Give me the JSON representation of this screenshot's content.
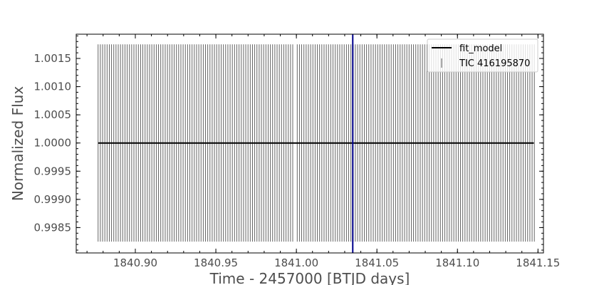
{
  "chart_data": {
    "type": "scatter",
    "title": "",
    "xlabel": "Time - 2457000 [BTJD days]",
    "ylabel": "Normalized Flux",
    "xlim": [
      1840.8633,
      1841.1534
    ],
    "ylim": [
      0.99805,
      1.00193
    ],
    "xticks": [
      1840.9,
      1840.95,
      1841.0,
      1841.05,
      1841.1,
      1841.15
    ],
    "xtick_labels": [
      "1840.90",
      "1840.95",
      "1841.00",
      "1841.05",
      "1841.10",
      "1841.15"
    ],
    "yticks": [
      0.9985,
      0.999,
      0.9995,
      1.0,
      1.0005,
      1.001,
      1.0015
    ],
    "ytick_labels": [
      "0.9985",
      "0.9990",
      "0.9995",
      "1.0000",
      "1.0005",
      "1.0010",
      "1.0015"
    ],
    "grid": false,
    "legend_position": "top-right",
    "series": [
      {
        "name": "fit_model",
        "kind": "line",
        "color": "#000000",
        "x": [
          1840.8769,
          1841.1474
        ],
        "y": [
          1.0,
          1.0
        ]
      },
      {
        "name": "TIC 416195870",
        "kind": "errorbar",
        "color": "#555555",
        "x_start": 1840.8769,
        "cadence_days": 0.0013889,
        "gap": [
          1840.9989,
          1841.0003
        ],
        "x_end": 1841.1474,
        "y": 1.0,
        "yerr": 0.00175
      }
    ],
    "annotations": [
      {
        "kind": "vline",
        "x": 1841.035,
        "color": "#00008b"
      }
    ]
  }
}
